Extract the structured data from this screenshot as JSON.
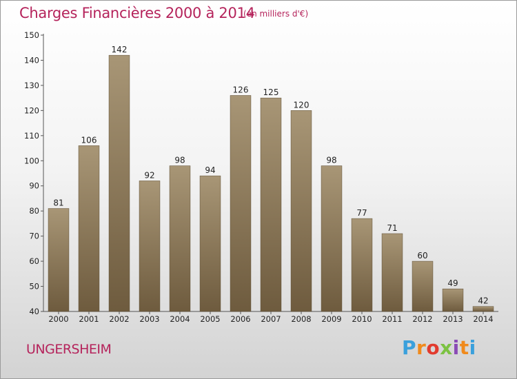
{
  "header": {
    "title": "Charges Financières 2000 à 2014",
    "subtitle": "(en milliers d'€)"
  },
  "footer": {
    "commune": "UNGERSHEIM",
    "logo_text": "Proxiti",
    "logo_colors": [
      "#3aa0dc",
      "#f08a1c",
      "#e23b2e",
      "#7cc242",
      "#8a4bb5",
      "#f08a1c",
      "#3aa0dc"
    ]
  },
  "chart_data": {
    "type": "bar",
    "title": "Charges Financières 2000 à 2014",
    "subtitle": "(en milliers d'€)",
    "xlabel": "",
    "ylabel": "",
    "categories": [
      "2000",
      "2001",
      "2002",
      "2003",
      "2004",
      "2005",
      "2006",
      "2007",
      "2008",
      "2009",
      "2010",
      "2011",
      "2012",
      "2013",
      "2014"
    ],
    "values": [
      81,
      106,
      142,
      92,
      98,
      94,
      126,
      125,
      120,
      98,
      77,
      71,
      60,
      49,
      42
    ],
    "ylim": [
      40,
      150
    ],
    "yticks": [
      40,
      50,
      60,
      70,
      80,
      90,
      100,
      110,
      120,
      130,
      140,
      150
    ],
    "grid": false,
    "legend": "none",
    "bar_color_top": "#a89676",
    "bar_color_bottom": "#6e5b3e"
  }
}
